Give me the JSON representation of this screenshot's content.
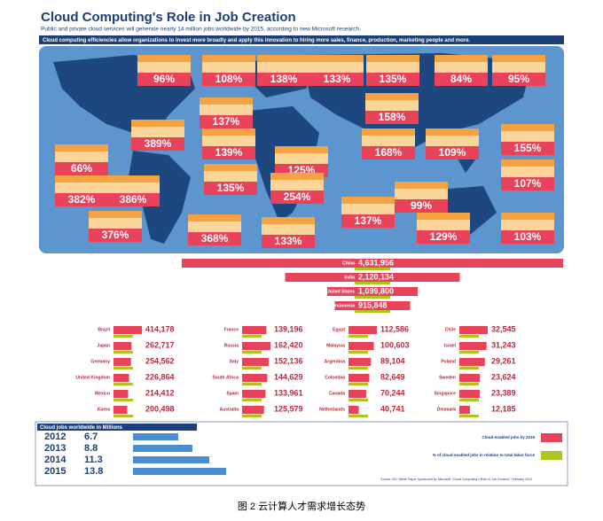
{
  "header": {
    "title": "Cloud Computing's Role in Job Creation",
    "subtitle": "Public and private cloud services will generate nearly 14 million jobs worldwide by 2015, according to new Microsoft research.",
    "banner": "Cloud computing efficiencies allow organizations to invest more broadly and apply this innovation to hiring more sales, finance, production, marketing people and more."
  },
  "map_callouts": [
    "96%",
    "108%",
    "138%",
    "133%",
    "135%",
    "84%",
    "95%",
    "137%",
    "158%",
    "389%",
    "139%",
    "168%",
    "109%",
    "155%",
    "66%",
    "125%",
    "135%",
    "107%",
    "382%",
    "386%",
    "254%",
    "99%",
    "376%",
    "368%",
    "133%",
    "137%",
    "129%",
    "103%"
  ],
  "top_countries": [
    {
      "country": "China",
      "value": 4631956,
      "label": "4,631,956"
    },
    {
      "country": "India",
      "value": 2120134,
      "label": "2,120,134"
    },
    {
      "country": "United States",
      "value": 1099800,
      "label": "1,099,800"
    },
    {
      "country": "Indonesia",
      "value": 915848,
      "label": "915,848"
    }
  ],
  "country_columns": [
    [
      {
        "country": "Brazil",
        "value": 414178,
        "label": "414,178"
      },
      {
        "country": "Japan",
        "value": 262717,
        "label": "262,717"
      },
      {
        "country": "Germany",
        "value": 254562,
        "label": "254,562"
      },
      {
        "country": "United Kingdom",
        "value": 226864,
        "label": "226,864"
      },
      {
        "country": "Mexico",
        "value": 214412,
        "label": "214,412"
      },
      {
        "country": "Korea",
        "value": 200498,
        "label": "200,498"
      }
    ],
    [
      {
        "country": "France",
        "value": 139196,
        "label": "139,196"
      },
      {
        "country": "Russia",
        "value": 162420,
        "label": "162,420"
      },
      {
        "country": "Italy",
        "value": 152136,
        "label": "152,136"
      },
      {
        "country": "South Africa",
        "value": 144629,
        "label": "144,629"
      },
      {
        "country": "Spain",
        "value": 133961,
        "label": "133,961"
      },
      {
        "country": "Australia",
        "value": 125579,
        "label": "125,579"
      }
    ],
    [
      {
        "country": "Egypt",
        "value": 112586,
        "label": "112,586"
      },
      {
        "country": "Malaysia",
        "value": 100603,
        "label": "100,603"
      },
      {
        "country": "Argentina",
        "value": 89104,
        "label": "89,104"
      },
      {
        "country": "Colombia",
        "value": 82649,
        "label": "82,649"
      },
      {
        "country": "Canada",
        "value": 70244,
        "label": "70,244"
      },
      {
        "country": "Netherlands",
        "value": 40741,
        "label": "40,741"
      }
    ],
    [
      {
        "country": "Chile",
        "value": 32545,
        "label": "32,545"
      },
      {
        "country": "Israel",
        "value": 31243,
        "label": "31,243"
      },
      {
        "country": "Poland",
        "value": 29261,
        "label": "29,261"
      },
      {
        "country": "Sweden",
        "value": 23624,
        "label": "23,624"
      },
      {
        "country": "Singapore",
        "value": 23389,
        "label": "23,389"
      },
      {
        "country": "Denmark",
        "value": 12185,
        "label": "12,185"
      }
    ]
  ],
  "worldwide": {
    "title": "Cloud jobs worldwide in Millions",
    "rows": [
      {
        "year": "2012",
        "value": 6.7
      },
      {
        "year": "2013",
        "value": 8.8
      },
      {
        "year": "2014",
        "value": 11.3
      },
      {
        "year": "2015",
        "value": 13.8
      }
    ]
  },
  "legend": [
    "Cloud-enabled jobs by 2015",
    "% of cloud-enabled jobs in relation to total labor force"
  ],
  "source": "Source: IDC White Paper Sponsored by Microsoft \"Cloud Computing's Role in Job Creation\" February 2012",
  "caption": "图 2 云计算人才需求增长态势"
}
